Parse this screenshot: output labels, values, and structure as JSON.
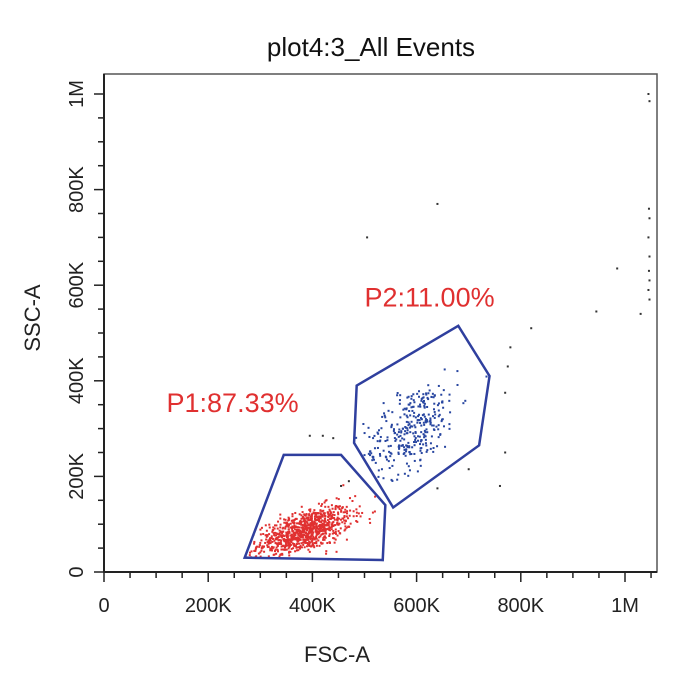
{
  "chart_data": {
    "type": "scatter",
    "title": "plot4:3_All Events",
    "xlabel": "FSC-A",
    "ylabel": "SSC-A",
    "xlim": [
      0,
      1050000
    ],
    "ylim": [
      0,
      1050000
    ],
    "x_ticks": [
      {
        "value": 0,
        "label": "0"
      },
      {
        "value": 200000,
        "label": "200K"
      },
      {
        "value": 400000,
        "label": "400K"
      },
      {
        "value": 600000,
        "label": "600K"
      },
      {
        "value": 800000,
        "label": "800K"
      },
      {
        "value": 1000000,
        "label": "1M"
      }
    ],
    "y_ticks": [
      {
        "value": 0,
        "label": "0"
      },
      {
        "value": 200000,
        "label": "200K"
      },
      {
        "value": 400000,
        "label": "400K"
      },
      {
        "value": 600000,
        "label": "600K"
      },
      {
        "value": 800000,
        "label": "800K"
      },
      {
        "value": 1000000,
        "label": "1M"
      }
    ],
    "minor_tick_step": 50000,
    "gates": [
      {
        "name": "P1",
        "label": "P1:87.33%",
        "percent": 87.33,
        "color": "#e03030",
        "outline_color": "#2f3f9e",
        "polygon": [
          [
            270000,
            30000
          ],
          [
            345000,
            245000
          ],
          [
            455000,
            245000
          ],
          [
            540000,
            140000
          ],
          [
            535000,
            25000
          ]
        ],
        "label_anchor": [
          120000,
          335000
        ],
        "cluster": {
          "center": [
            385000,
            85000
          ],
          "spread": [
            45000,
            30000
          ],
          "slope": 0.55,
          "count": 900
        }
      },
      {
        "name": "P2",
        "label": "P2:11.00%",
        "percent": 11.0,
        "color": "#2846a0",
        "outline_color": "#2f3f9e",
        "polygon": [
          [
            480000,
            270000
          ],
          [
            485000,
            390000
          ],
          [
            680000,
            515000
          ],
          [
            740000,
            410000
          ],
          [
            720000,
            265000
          ],
          [
            555000,
            135000
          ]
        ],
        "label_anchor": [
          500000,
          555000
        ],
        "cluster": {
          "center": [
            590000,
            300000
          ],
          "spread": [
            45000,
            60000
          ],
          "slope": 1.05,
          "count": 320
        }
      }
    ],
    "outliers": {
      "color": "#333333",
      "points": [
        [
          640000,
          770000
        ],
        [
          505000,
          700000
        ],
        [
          945000,
          545000
        ],
        [
          1030000,
          540000
        ],
        [
          985000,
          635000
        ],
        [
          820000,
          510000
        ],
        [
          780000,
          470000
        ],
        [
          775000,
          430000
        ],
        [
          770000,
          375000
        ],
        [
          770000,
          250000
        ],
        [
          760000,
          180000
        ],
        [
          700000,
          215000
        ],
        [
          440000,
          280000
        ],
        [
          420000,
          285000
        ],
        [
          395000,
          285000
        ],
        [
          470000,
          190000
        ],
        [
          455000,
          180000
        ],
        [
          640000,
          175000
        ],
        [
          1045000,
          1000000
        ],
        [
          1047000,
          985000
        ],
        [
          1046000,
          760000
        ],
        [
          1047000,
          740000
        ],
        [
          1045000,
          700000
        ],
        [
          1047000,
          660000
        ],
        [
          1046000,
          630000
        ],
        [
          1047000,
          610000
        ],
        [
          1045000,
          590000
        ],
        [
          1047000,
          570000
        ]
      ]
    }
  }
}
